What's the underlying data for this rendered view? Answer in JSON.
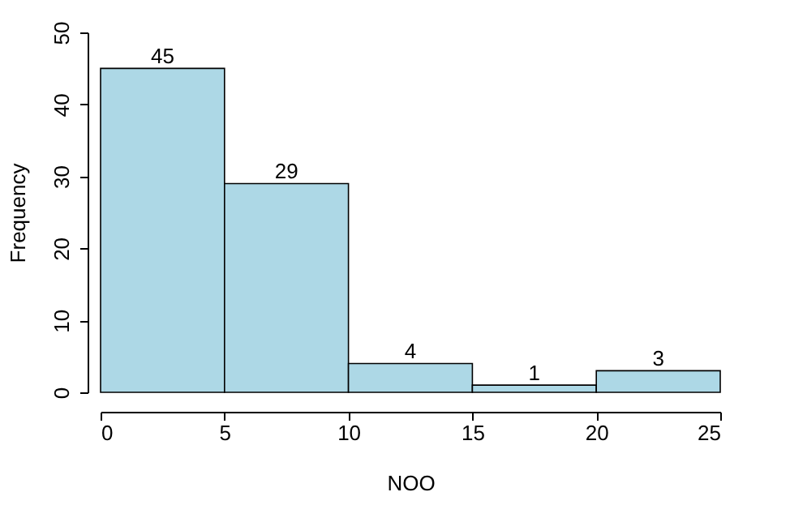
{
  "chart_data": {
    "type": "histogram",
    "xlabel": "NOO",
    "ylabel": "Frequency",
    "bins": [
      0,
      5,
      10,
      15,
      20,
      25
    ],
    "values": [
      45,
      29,
      4,
      1,
      3
    ],
    "color": "#add8e6",
    "xlim": [
      0,
      25
    ],
    "xticks": [
      0,
      5,
      10,
      15,
      20,
      25
    ],
    "ylim": [
      0,
      50
    ],
    "yticks": [
      0,
      10,
      20,
      30,
      40,
      50
    ],
    "data_labels": true
  }
}
